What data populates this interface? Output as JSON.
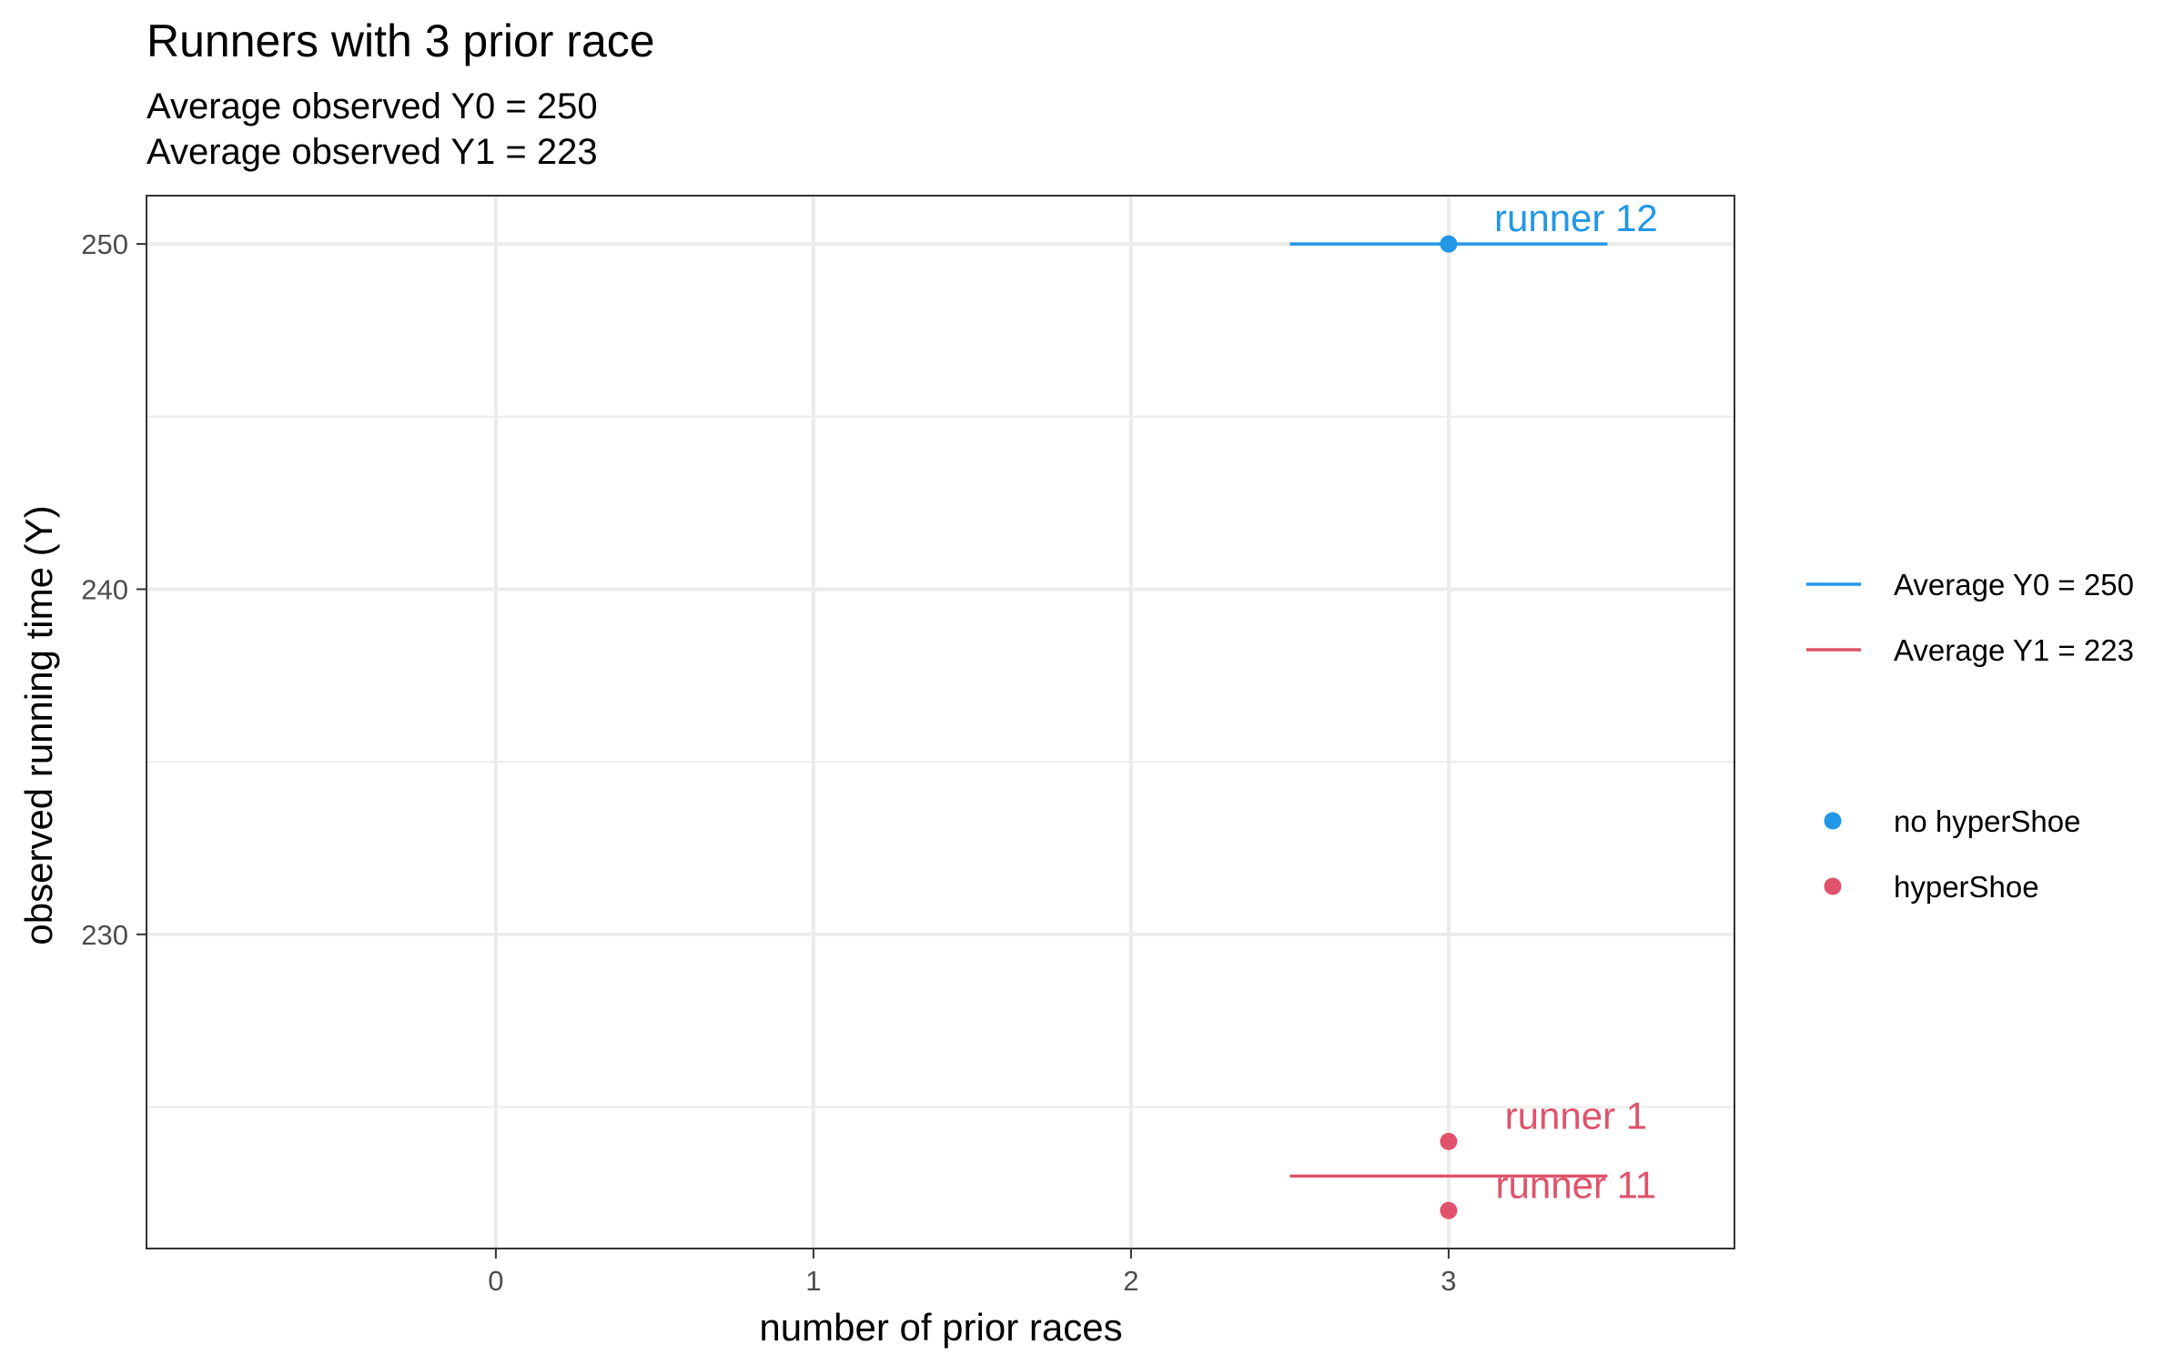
{
  "chart_data": {
    "type": "scatter",
    "title": "Runners with 3 prior race",
    "subtitle_lines": [
      "Average observed Y0 = 250",
      "Average observed Y1 = 223"
    ],
    "xlabel": "number of prior races",
    "ylabel": "observed running time (Y)",
    "xlim": [
      -1.1,
      3.9
    ],
    "ylim": [
      220.9,
      251.4
    ],
    "x_ticks": [
      0,
      1,
      2,
      3
    ],
    "y_ticks": [
      230,
      240,
      250
    ],
    "grid": true,
    "colors": {
      "no_hypershoe": "#2297E6",
      "hypershoe": "#DF536B"
    },
    "average_lines": [
      {
        "name": "Average Y0 = 250",
        "x_from": 2.5,
        "x_to": 3.5,
        "y": 250,
        "color": "#2297E6"
      },
      {
        "name": "Average Y1 = 223",
        "x_from": 2.5,
        "x_to": 3.5,
        "y": 223,
        "color": "#DF536B"
      }
    ],
    "points": [
      {
        "label": "runner 12",
        "x": 3,
        "y": 250,
        "group": "no hyperShoe",
        "color": "#2297E6"
      },
      {
        "label": "runner 1",
        "x": 3,
        "y": 224,
        "group": "hyperShoe",
        "color": "#DF536B"
      },
      {
        "label": "runner 11",
        "x": 3,
        "y": 222,
        "group": "hyperShoe",
        "color": "#DF536B"
      }
    ],
    "legend": {
      "placement": "right",
      "lines": [
        {
          "label": "Average Y0 = 250",
          "color": "#2297E6"
        },
        {
          "label": "Average Y1 = 223",
          "color": "#DF536B"
        }
      ],
      "points": [
        {
          "label": "no hyperShoe",
          "color": "#2297E6"
        },
        {
          "label": "hyperShoe",
          "color": "#DF536B"
        }
      ]
    }
  }
}
